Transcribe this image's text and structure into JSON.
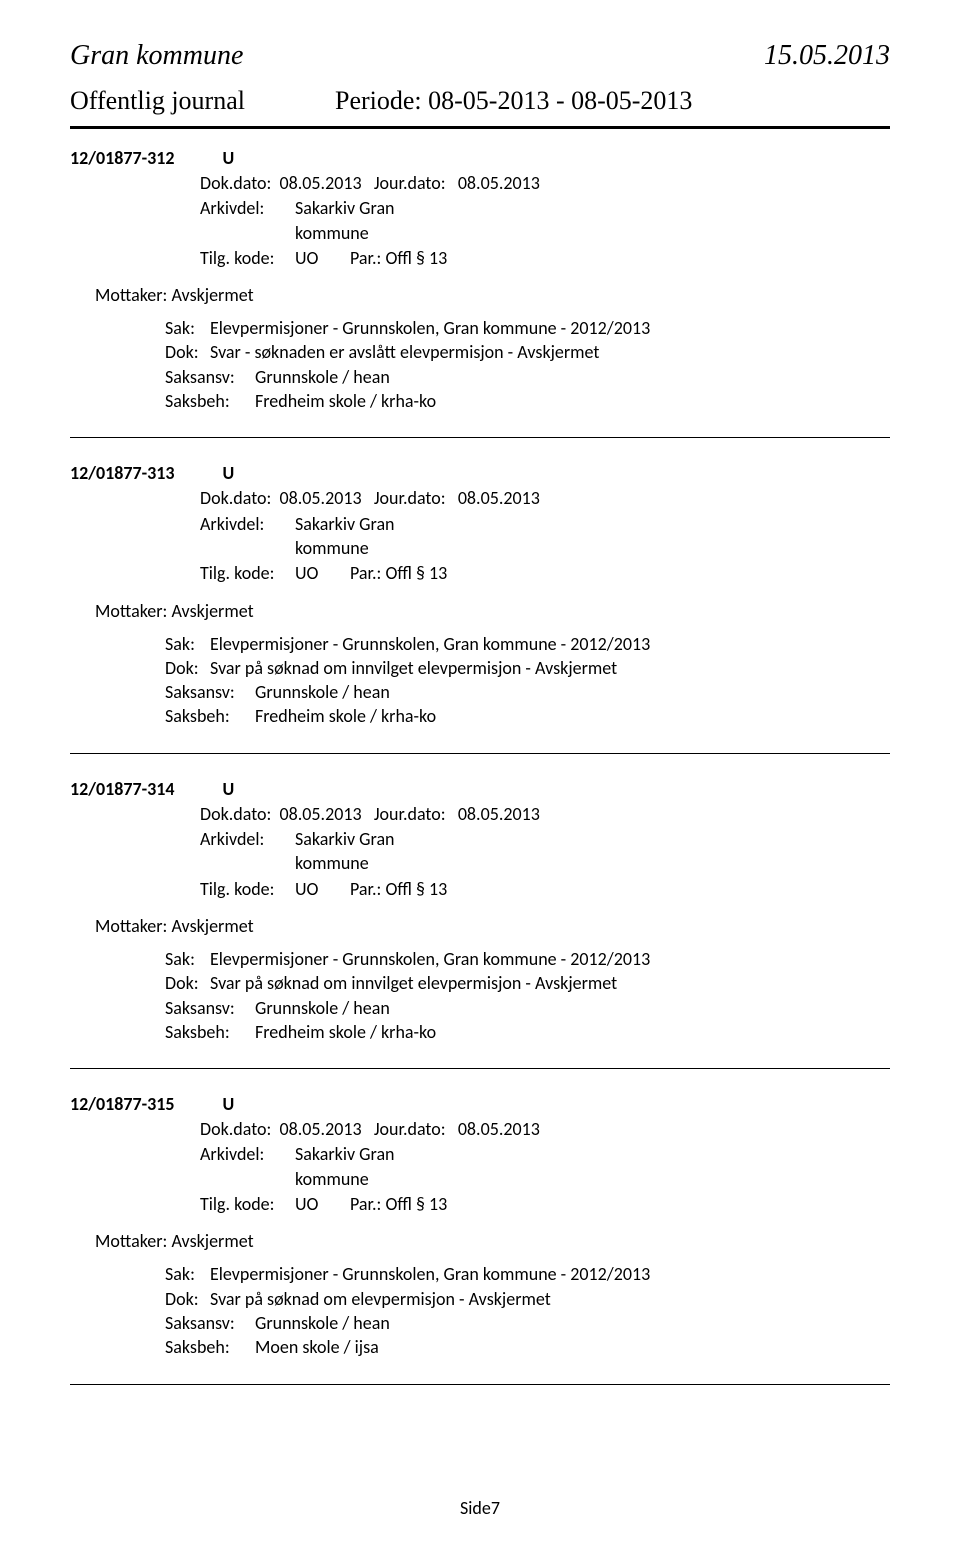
{
  "header": {
    "municipality": "Gran kommune",
    "report_date": "15.05.2013",
    "journal_title": "Offentlig journal",
    "period_label": "Periode:",
    "period_value": "08-05-2013 - 08-05-2013"
  },
  "labels": {
    "dokdato": "Dok.dato:",
    "jourdato": "Jour.dato:",
    "arkivdel": "Arkivdel:",
    "tilgkode": "Tilg. kode:",
    "par": "Par.:",
    "mottaker": "Mottaker:",
    "sak": "Sak:",
    "dok": "Dok:",
    "saksansv": "Saksansv:",
    "saksbeh": "Saksbeh:"
  },
  "entries": [
    {
      "id": "12/01877-312",
      "type": "U",
      "dokdato": "08.05.2013",
      "jourdato": "08.05.2013",
      "arkivdel_l1": "Sakarkiv Gran",
      "arkivdel_l2": "kommune",
      "tilgkode": "UO",
      "par": "Offl § 13",
      "mottaker": "Avskjermet",
      "sak": "Elevpermisjoner - Grunnskolen,    Gran kommune - 2012/2013",
      "dok": "Svar - søknaden er avslått elevpermisjon - Avskjermet",
      "saksansv": "Grunnskole / hean",
      "saksbeh": "Fredheim skole / krha-ko"
    },
    {
      "id": "12/01877-313",
      "type": "U",
      "dokdato": "08.05.2013",
      "jourdato": "08.05.2013",
      "arkivdel_l1": "Sakarkiv Gran",
      "arkivdel_l2": "kommune",
      "tilgkode": "UO",
      "par": "Offl § 13",
      "mottaker": "Avskjermet",
      "sak": "Elevpermisjoner - Grunnskolen,    Gran kommune - 2012/2013",
      "dok": "Svar på søknad om innvilget elevpermisjon - Avskjermet",
      "saksansv": "Grunnskole / hean",
      "saksbeh": "Fredheim skole / krha-ko"
    },
    {
      "id": "12/01877-314",
      "type": "U",
      "dokdato": "08.05.2013",
      "jourdato": "08.05.2013",
      "arkivdel_l1": "Sakarkiv Gran",
      "arkivdel_l2": "kommune",
      "tilgkode": "UO",
      "par": "Offl § 13",
      "mottaker": "Avskjermet",
      "sak": "Elevpermisjoner - Grunnskolen,    Gran kommune - 2012/2013",
      "dok": "Svar på søknad om innvilget elevpermisjon - Avskjermet",
      "saksansv": "Grunnskole / hean",
      "saksbeh": "Fredheim skole / krha-ko"
    },
    {
      "id": "12/01877-315",
      "type": "U",
      "dokdato": "08.05.2013",
      "jourdato": "08.05.2013",
      "arkivdel_l1": "Sakarkiv Gran",
      "arkivdel_l2": "kommune",
      "tilgkode": "UO",
      "par": "Offl § 13",
      "mottaker": "Avskjermet",
      "sak": "Elevpermisjoner - Grunnskolen,    Gran kommune - 2012/2013",
      "dok": "Svar på søknad om elevpermisjon - Avskjermet",
      "saksansv": "Grunnskole / hean",
      "saksbeh": "Moen skole / ijsa"
    }
  ],
  "footer": {
    "page": "Side7"
  }
}
